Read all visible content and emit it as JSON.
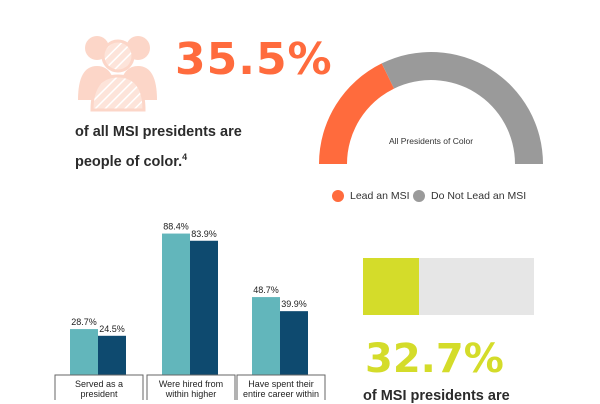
{
  "colors": {
    "orange": "#ff6b3d",
    "orange_light": "#fcd6c8",
    "gray_gauge": "#9a9a9a",
    "teal": "#62b6bb",
    "navy": "#0e4a6f",
    "lime": "#d4dc2a",
    "track": "#e6e6e6"
  },
  "icons": {
    "people": "people-group-icon"
  },
  "stat1": {
    "value": "35.5%",
    "line1": "of all MSI presidents are",
    "line2": "people of color.",
    "footnote": "4"
  },
  "stat2": {
    "value": "32.7%",
    "line1": "of MSI presidents are",
    "fraction": 0.327
  },
  "chart_data": [
    {
      "type": "pie",
      "style": "semi-donut",
      "title": "All Presidents of Color",
      "slices": [
        {
          "label": "Lead an MSI",
          "value": 35.5,
          "color": "#ff6b3d"
        },
        {
          "label": "Do Not Lead an MSI",
          "value": 64.5,
          "color": "#9a9a9a"
        }
      ],
      "legend_placement": "bottom"
    },
    {
      "type": "bar",
      "categories": [
        [
          "Served as a",
          "president"
        ],
        [
          "Were hired from",
          "within higher"
        ],
        [
          "Have spent their",
          "entire career within"
        ]
      ],
      "series": [
        {
          "values": [
            28.7,
            88.4,
            48.7
          ],
          "color": "#62b6bb"
        },
        {
          "values": [
            24.5,
            83.9,
            39.9
          ],
          "color": "#0e4a6f"
        }
      ],
      "value_labels": [
        [
          "28.7%",
          "88.4%",
          "48.7%"
        ],
        [
          "24.5%",
          "83.9%",
          "39.9%"
        ]
      ],
      "ylim": [
        0,
        100
      ],
      "grid": false
    }
  ]
}
